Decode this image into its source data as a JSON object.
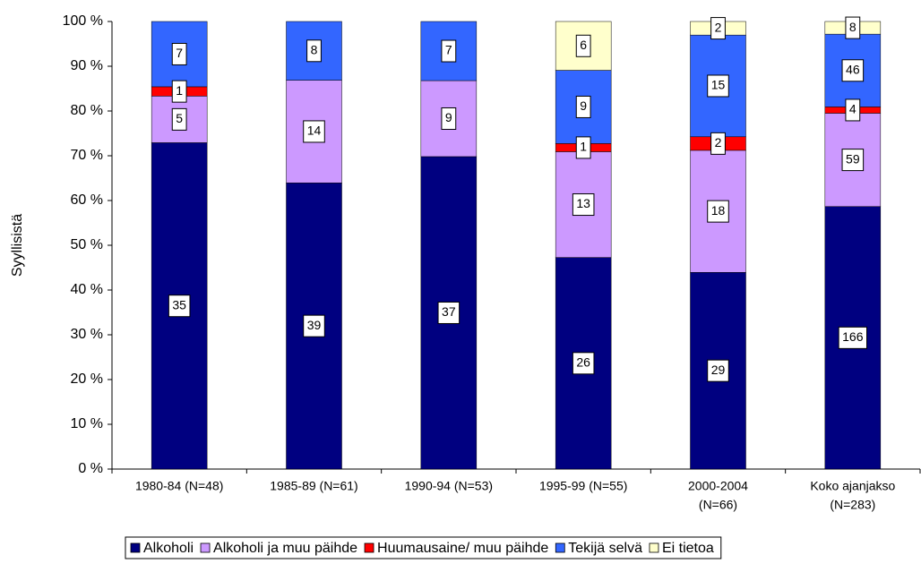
{
  "chart_data": {
    "type": "bar",
    "stacked": "percent",
    "y_label": "Syyllisistä",
    "categories": [
      [
        "1980-84 (N=48)"
      ],
      [
        "1985-89 (N=61)"
      ],
      [
        "1990-94 (N=53)"
      ],
      [
        "1995-99 (N=55)"
      ],
      [
        "2000-2004",
        "(N=66)"
      ],
      [
        "Koko ajanjakso",
        "(N=283)"
      ]
    ],
    "series": [
      {
        "name": "Alkoholi",
        "color": "#000080",
        "values": [
          35,
          39,
          37,
          26,
          29,
          166
        ]
      },
      {
        "name": "Alkoholi ja muu päihde",
        "color": "#cc99ff",
        "values": [
          5,
          14,
          9,
          13,
          18,
          59
        ]
      },
      {
        "name": "Huumausaine/ muu päihde",
        "color": "#ff0000",
        "values": [
          1,
          null,
          null,
          1,
          2,
          4
        ]
      },
      {
        "name": "Tekijä selvä",
        "color": "#3366ff",
        "values": [
          7,
          8,
          7,
          9,
          15,
          46
        ]
      },
      {
        "name": "Ei tietoa",
        "color": "#ffffcc",
        "values": [
          null,
          null,
          null,
          6,
          2,
          8
        ]
      }
    ],
    "ylim": [
      0,
      100
    ],
    "yticks": [
      {
        "value": 0,
        "label": "0 %"
      },
      {
        "value": 10,
        "label": "10 %"
      },
      {
        "value": 20,
        "label": "20 %"
      },
      {
        "value": 30,
        "label": "30 %"
      },
      {
        "value": 40,
        "label": "40 %"
      },
      {
        "value": 50,
        "label": "50 %"
      },
      {
        "value": 60,
        "label": "60 %"
      },
      {
        "value": 70,
        "label": "70 %"
      },
      {
        "value": 80,
        "label": "80 %"
      },
      {
        "value": 90,
        "label": "90 %"
      },
      {
        "value": 100,
        "label": "100 %"
      }
    ],
    "legend": "bottom"
  }
}
